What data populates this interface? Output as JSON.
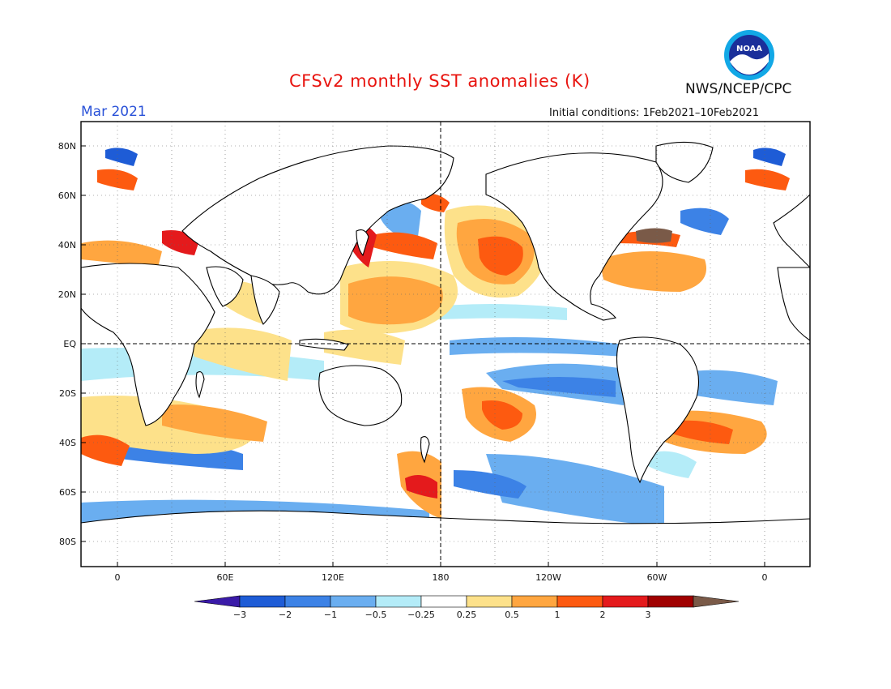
{
  "title": "CFSv2 monthly SST anomalies (K)",
  "month": "Mar 2021",
  "agency": "NWS/NCEP/CPC",
  "logo_text": "NOAA",
  "initial_conditions": "Initial conditions: 1Feb2021–10Feb2021",
  "map": {
    "lat_labels": [
      "80N",
      "60N",
      "40N",
      "20N",
      "EQ",
      "20S",
      "40S",
      "60S",
      "80S"
    ],
    "lon_labels": [
      "0",
      "60E",
      "120E",
      "180",
      "120W",
      "60W",
      "0"
    ]
  },
  "colorbar": {
    "labels": [
      "−3",
      "−2",
      "−1",
      "−0.5",
      "−0.25",
      "0.25",
      "0.5",
      "1",
      "2",
      "3"
    ],
    "colors": [
      "#3a1aa8",
      "#1e5cd6",
      "#3c82e6",
      "#6aaef0",
      "#b4ecf8",
      "#ffffff",
      "#fde18a",
      "#ffa640",
      "#fd5a10",
      "#e41a1c",
      "#a00000",
      "#7a5a48"
    ]
  },
  "colors": {
    "title": "#e8140f",
    "month": "#2a52d8"
  }
}
